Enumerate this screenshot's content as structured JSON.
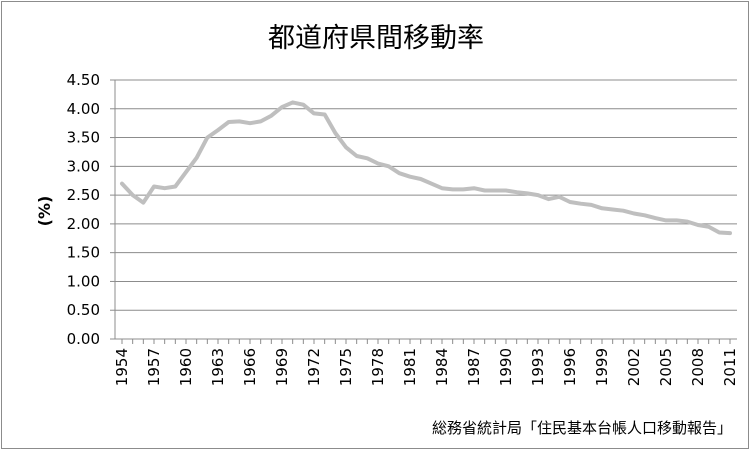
{
  "chart_data": {
    "type": "line",
    "title": "都道府県間移動率",
    "ylabel": "(%)",
    "xlabel": "",
    "source": "総務省統計局「住民基本台帳人口移動報告」",
    "ylim": [
      0,
      4.5
    ],
    "ytick_step": 0.5,
    "ytick_labels": [
      "0.00",
      "0.50",
      "1.00",
      "1.50",
      "2.00",
      "2.50",
      "3.00",
      "3.50",
      "4.00",
      "4.50"
    ],
    "xtick_labels": [
      "1954",
      "1957",
      "1960",
      "1963",
      "1966",
      "1969",
      "1972",
      "1975",
      "1978",
      "1981",
      "1984",
      "1987",
      "1990",
      "1993",
      "1996",
      "1999",
      "2002",
      "2005",
      "2008",
      "2011"
    ],
    "grid": true,
    "line_color": "#bfbfbf",
    "grid_color": "#8c8c8c",
    "series": [
      {
        "x": [
          1954,
          1955,
          1956,
          1957,
          1958,
          1959,
          1960,
          1961,
          1962,
          1963,
          1964,
          1965,
          1966,
          1967,
          1968,
          1969,
          1970,
          1971,
          1972,
          1973,
          1974,
          1975,
          1976,
          1977,
          1978,
          1979,
          1980,
          1981,
          1982,
          1983,
          1984,
          1985,
          1986,
          1987,
          1988,
          1989,
          1990,
          1991,
          1992,
          1993,
          1994,
          1995,
          1996,
          1997,
          1998,
          1999,
          2000,
          2001,
          2002,
          2003,
          2004,
          2005,
          2006,
          2007,
          2008,
          2009,
          2010,
          2011
        ],
        "values": [
          2.7,
          2.5,
          2.37,
          2.65,
          2.62,
          2.65,
          2.9,
          3.15,
          3.5,
          3.63,
          3.77,
          3.78,
          3.75,
          3.78,
          3.88,
          4.03,
          4.11,
          4.07,
          3.92,
          3.9,
          3.58,
          3.33,
          3.18,
          3.14,
          3.05,
          3.0,
          2.88,
          2.82,
          2.78,
          2.7,
          2.62,
          2.6,
          2.6,
          2.62,
          2.58,
          2.58,
          2.58,
          2.55,
          2.53,
          2.5,
          2.43,
          2.47,
          2.38,
          2.35,
          2.33,
          2.27,
          2.25,
          2.23,
          2.18,
          2.15,
          2.1,
          2.06,
          2.06,
          2.04,
          1.98,
          1.95,
          1.85,
          1.84
        ]
      }
    ]
  }
}
